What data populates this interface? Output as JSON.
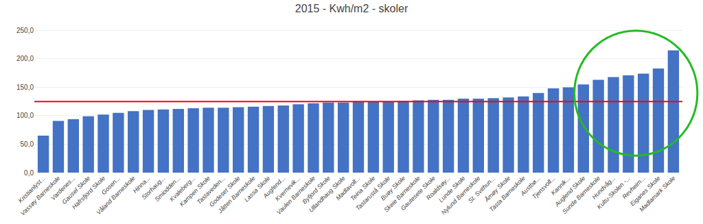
{
  "chart_data": {
    "type": "bar",
    "title": "2015 - Kwh/m2 - skoler",
    "categories": [
      "Kristianlyst...",
      "Vassøy Barneskole",
      "Vardenes...",
      "Gausel Skole",
      "Hafrsfjord Skole",
      "Gosen...",
      "Våland Barneskole",
      "Hinna...",
      "Storhaug...",
      "Smiodden...",
      "Kvaleberg...",
      "Kampen Skole",
      "Tastaveden...",
      "Godeset Skole",
      "Jåtten Barneskole",
      "Lassa Skole",
      "Augfend...",
      "Kvernevik...",
      "Vaulen Barneskole",
      "Byfjord Skole",
      "Ullandhaug Skole",
      "Madlavoll...",
      "Teina Skole",
      "Tastarustå Skole",
      "Buøy Skole",
      "Skeie Barneskole",
      "Gautesete Skole",
      "Roaldsøy...",
      "Lunde Skole",
      "Nylund Barneskole",
      "St. Svithun...",
      "Åmøy Skole",
      "Tasta Barneskole",
      "Austbø...",
      "Tjensvoll...",
      "Kannik...",
      "Auglend Skole",
      "Sunde Barneskole",
      "Hundvåg...",
      "Kultu-Skolen -...",
      "Revheim...",
      "Eiganes Skole",
      "Madlamark Skole"
    ],
    "values": [
      65,
      91,
      94,
      99,
      102,
      105,
      108,
      110,
      111,
      112,
      113,
      114,
      114,
      115,
      116,
      117,
      118,
      120,
      122,
      123,
      123,
      124,
      125,
      125,
      126,
      127,
      128,
      128,
      130,
      130,
      131,
      132,
      134,
      140,
      148,
      150,
      155,
      163,
      168,
      171,
      174,
      183,
      215
    ],
    "color": "#4472C4",
    "ylim": [
      0,
      260
    ],
    "yticks": [
      {
        "value": 0,
        "label": "0,0"
      },
      {
        "value": 50,
        "label": "50,0"
      },
      {
        "value": 100,
        "label": "100,0"
      },
      {
        "value": 150,
        "label": "150,0"
      },
      {
        "value": 200,
        "label": "200,0"
      },
      {
        "value": 250,
        "label": "250,0"
      }
    ],
    "grid": true,
    "reference_line": {
      "value": 125,
      "color": "#FF0000"
    },
    "highlight": {
      "categories": [
        "Sunde Barneskole",
        "Hundvåg...",
        "Kultu-Skolen -...",
        "Revheim...",
        "Eiganes Skole",
        "Madlamark Skole"
      ],
      "color": "#22BB22"
    }
  }
}
